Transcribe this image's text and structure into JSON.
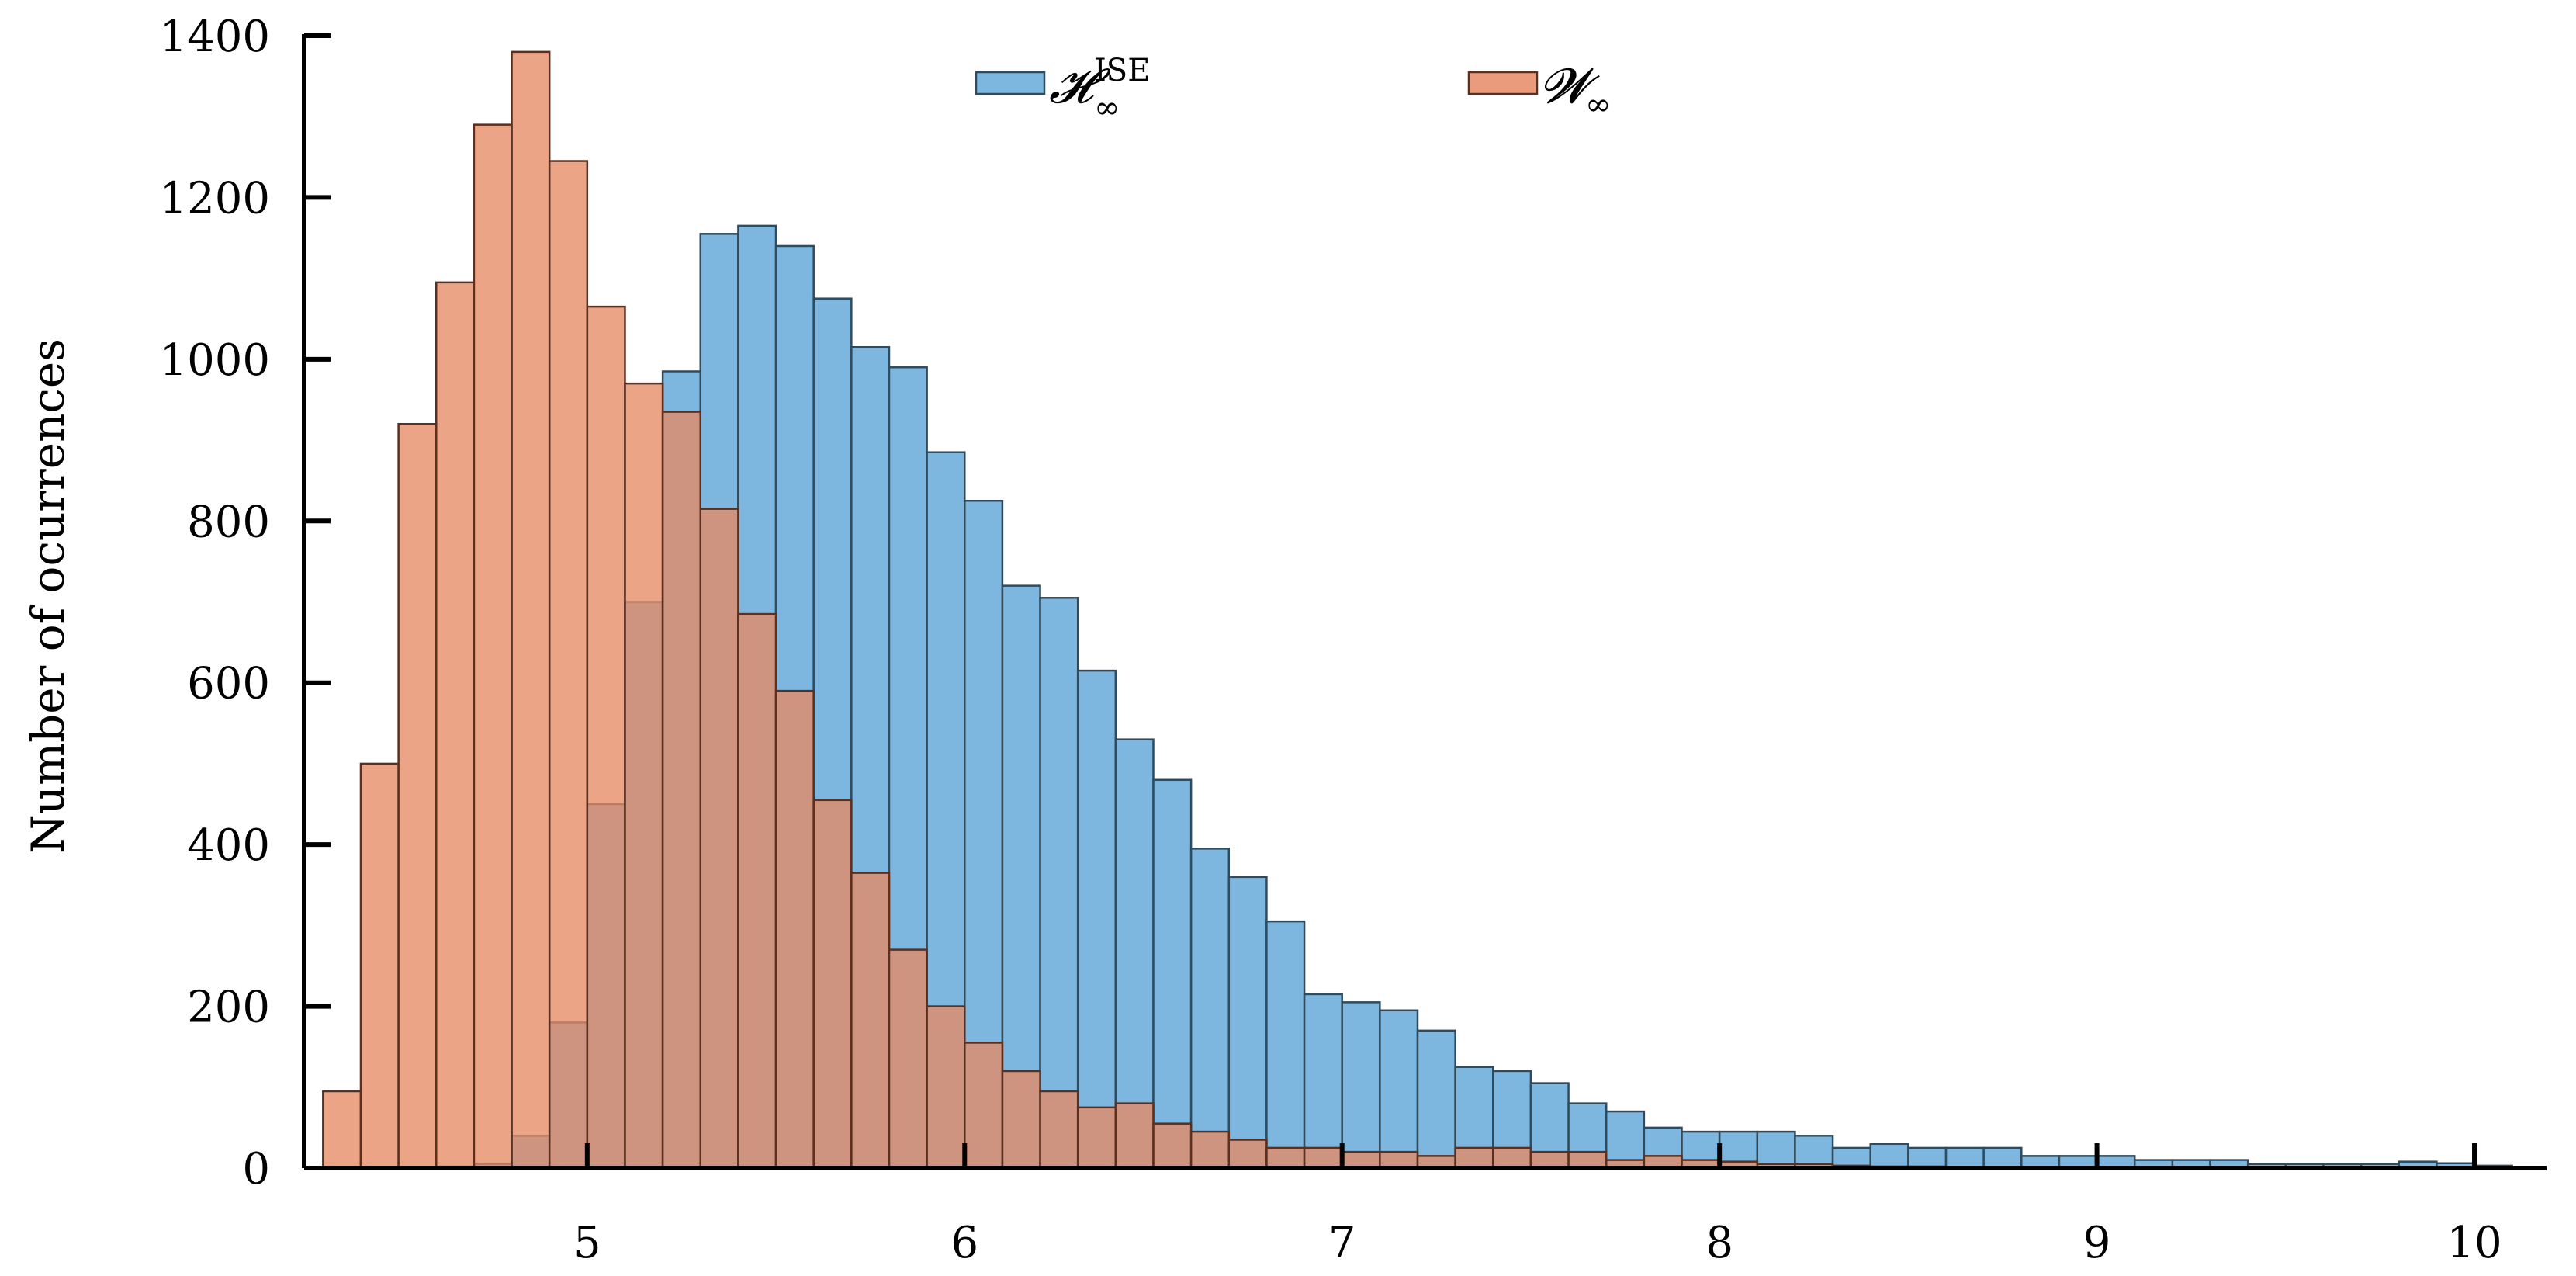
{
  "chart_data": {
    "type": "bar",
    "title": "",
    "xlabel": "",
    "ylabel": "Number of ocurrences",
    "xlim": [
      4.25,
      10.15
    ],
    "ylim": [
      0,
      1400
    ],
    "xticks": [
      5,
      6,
      7,
      8,
      9,
      10
    ],
    "yticks": [
      0,
      200,
      400,
      600,
      800,
      1000,
      1200,
      1400
    ],
    "grid": false,
    "legend_placement": "top-center",
    "bin_width": 0.1,
    "series": [
      {
        "name": "H∞ISE",
        "legend_main": "𝓗",
        "legend_sup": "ISE",
        "legend_sub": "∞",
        "color": "#7db6de",
        "edge": "#2f4b5c",
        "bin_starts": [
          4.3,
          4.4,
          4.5,
          4.6,
          4.7,
          4.8,
          4.9,
          5.0,
          5.1,
          5.2,
          5.3,
          5.4,
          5.5,
          5.6,
          5.7,
          5.8,
          5.9,
          6.0,
          6.1,
          6.2,
          6.3,
          6.4,
          6.5,
          6.6,
          6.7,
          6.8,
          6.9,
          7.0,
          7.1,
          7.2,
          7.3,
          7.4,
          7.5,
          7.6,
          7.7,
          7.8,
          7.9,
          8.0,
          8.1,
          8.2,
          8.3,
          8.4,
          8.5,
          8.6,
          8.7,
          8.8,
          8.9,
          9.0,
          9.1,
          9.2,
          9.3,
          9.4,
          9.5,
          9.6,
          9.7,
          9.8,
          9.9,
          10.0
        ],
        "values": [
          0,
          0,
          0,
          2,
          5,
          40,
          180,
          450,
          700,
          985,
          1155,
          1165,
          1140,
          1075,
          1015,
          990,
          885,
          825,
          720,
          705,
          615,
          530,
          480,
          395,
          360,
          305,
          215,
          205,
          195,
          170,
          125,
          120,
          105,
          80,
          70,
          50,
          45,
          45,
          45,
          40,
          25,
          30,
          25,
          25,
          25,
          15,
          15,
          15,
          10,
          10,
          10,
          5,
          5,
          5,
          5,
          8,
          6,
          3
        ]
      },
      {
        "name": "W∞",
        "legend_main": "𝓦",
        "legend_sub": "∞",
        "color": "#e68a64",
        "edge": "#5a3020",
        "bin_starts": [
          4.3,
          4.4,
          4.5,
          4.6,
          4.7,
          4.8,
          4.9,
          5.0,
          5.1,
          5.2,
          5.3,
          5.4,
          5.5,
          5.6,
          5.7,
          5.8,
          5.9,
          6.0,
          6.1,
          6.2,
          6.3,
          6.4,
          6.5,
          6.6,
          6.7,
          6.8,
          6.9,
          7.0,
          7.1,
          7.2,
          7.3,
          7.4,
          7.5,
          7.6,
          7.7,
          7.8,
          7.9,
          8.0,
          8.1,
          8.2,
          8.3,
          8.4,
          8.5,
          8.6,
          8.7,
          8.8,
          8.9,
          9.0,
          9.1,
          9.2,
          9.3,
          9.4,
          9.5,
          9.6,
          9.7,
          9.8,
          9.9,
          10.0
        ],
        "values": [
          95,
          500,
          920,
          1095,
          1290,
          1380,
          1245,
          1065,
          970,
          935,
          815,
          685,
          590,
          455,
          365,
          270,
          200,
          155,
          120,
          95,
          75,
          80,
          55,
          45,
          35,
          25,
          25,
          20,
          20,
          15,
          25,
          25,
          20,
          20,
          10,
          15,
          10,
          8,
          5,
          5,
          3,
          2,
          2,
          1,
          1,
          0,
          0,
          0,
          0,
          0,
          0,
          0,
          0,
          0,
          0,
          0,
          0,
          0
        ]
      }
    ]
  }
}
